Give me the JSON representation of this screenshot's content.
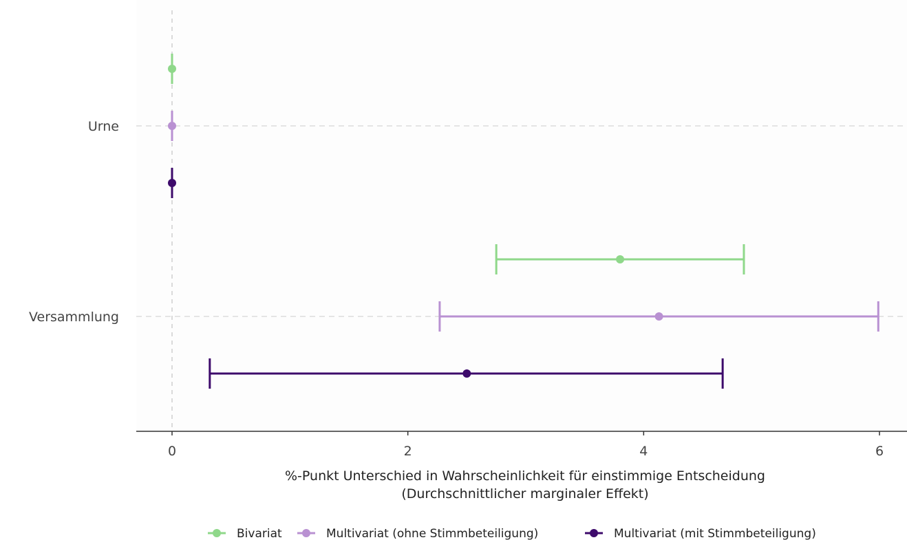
{
  "chart_data": {
    "type": "scatter",
    "subtype": "coefficient-plot-with-error-bars",
    "orientation": "horizontal",
    "categories": [
      "Urne",
      "Versammlung"
    ],
    "xlabel": "%-Punkt Unterschied in Wahrscheinlichkeit für einstimmige Entscheidung",
    "xlabel_sub": "(Durchschnittlicher marginaler Effekt)",
    "ylabel": "",
    "xlim": [
      -0.3,
      6.2
    ],
    "xticks": [
      0,
      2,
      4,
      6
    ],
    "x_reference_line": 0,
    "grid": "horizontal dashed lines at categories, dashed vertical line at 0",
    "legend_position": "bottom",
    "series": [
      {
        "name": "Bivariat",
        "color": "#8fd88a",
        "points": [
          {
            "category": "Urne",
            "estimate": 0.0,
            "lower": 0.0,
            "upper": 0.0
          },
          {
            "category": "Versammlung",
            "estimate": 3.8,
            "lower": 2.75,
            "upper": 4.85
          }
        ]
      },
      {
        "name": "Multivariat (ohne Stimmbeteiligung)",
        "color": "#b991d2",
        "points": [
          {
            "category": "Urne",
            "estimate": 0.0,
            "lower": 0.0,
            "upper": 0.0
          },
          {
            "category": "Versammlung",
            "estimate": 4.13,
            "lower": 2.27,
            "upper": 5.99
          }
        ]
      },
      {
        "name": "Multivariat (mit Stimmbeteiligung)",
        "color": "#3d0a6b",
        "points": [
          {
            "category": "Urne",
            "estimate": 0.0,
            "lower": 0.0,
            "upper": 0.0
          },
          {
            "category": "Versammlung",
            "estimate": 2.5,
            "lower": 0.32,
            "upper": 4.67
          }
        ]
      }
    ]
  }
}
